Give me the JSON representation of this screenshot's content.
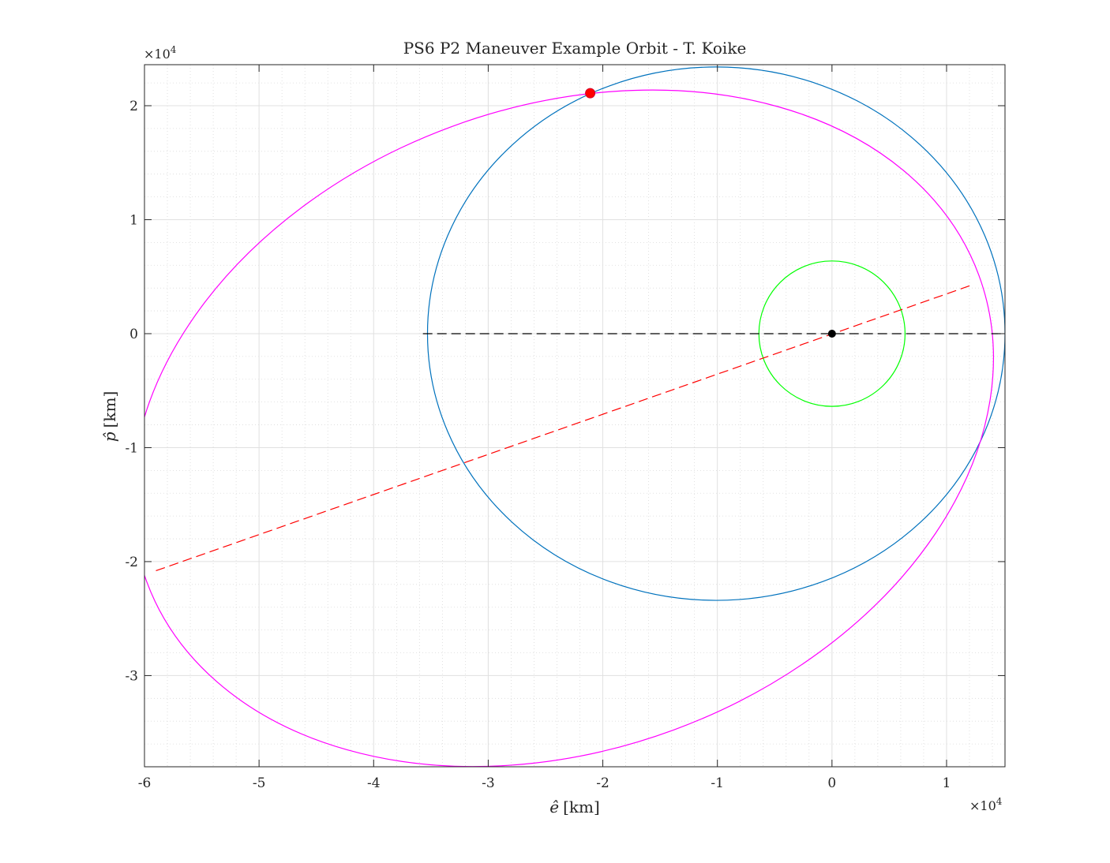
{
  "chart_data": {
    "type": "line",
    "title": "PS6 P2 Maneuver Example Orbit - T. Koike",
    "xlabel_symbol": "ê",
    "xlabel_unit": "[km]",
    "ylabel_symbol": "p̂",
    "ylabel_unit": "[km]",
    "x_exponent_label": "×10",
    "x_exponent_power": "4",
    "y_exponent_label": "×10",
    "y_exponent_power": "4",
    "xlim": [
      -60000,
      15100
    ],
    "ylim": [
      -38000,
      23600
    ],
    "xticks": [
      -60000,
      -50000,
      -40000,
      -30000,
      -20000,
      -10000,
      0,
      10000
    ],
    "xtick_labels": [
      "-6",
      "-5",
      "-4",
      "-3",
      "-2",
      "-1",
      "0",
      "1"
    ],
    "yticks": [
      -30000,
      -20000,
      -10000,
      0,
      10000,
      20000
    ],
    "ytick_labels": [
      "-3",
      "-2",
      "-1",
      "0",
      "1",
      "2"
    ],
    "grid": true,
    "minor_grid": true,
    "series": [
      {
        "kind": "ellipse",
        "color": "#0072BD",
        "center": [
          -10100,
          0
        ],
        "semi_major": 25200,
        "semi_minor": 23400,
        "rotation_deg": 0
      },
      {
        "kind": "ellipse",
        "color": "#FF00FF",
        "center": [
          -23500,
          -8300
        ],
        "semi_major": 38700,
        "semi_minor": 28200,
        "rotation_deg": 20.2
      },
      {
        "kind": "ellipse",
        "color": "#00FF00",
        "center": [
          0,
          0
        ],
        "semi_major": 6378,
        "semi_minor": 6378,
        "rotation_deg": 0
      },
      {
        "kind": "dashed-line",
        "color": "#000000",
        "x": [
          -35700,
          15100
        ],
        "y": [
          0,
          0
        ]
      },
      {
        "kind": "dashed-line",
        "color": "#FF0000",
        "x": [
          -59000,
          12300
        ],
        "y": [
          -20800,
          4300
        ]
      }
    ],
    "markers": [
      {
        "color": "#FF0000",
        "x": -21100,
        "y": 21100,
        "size": "large"
      },
      {
        "color": "#000000",
        "x": 0,
        "y": 0,
        "size": "small"
      }
    ]
  }
}
